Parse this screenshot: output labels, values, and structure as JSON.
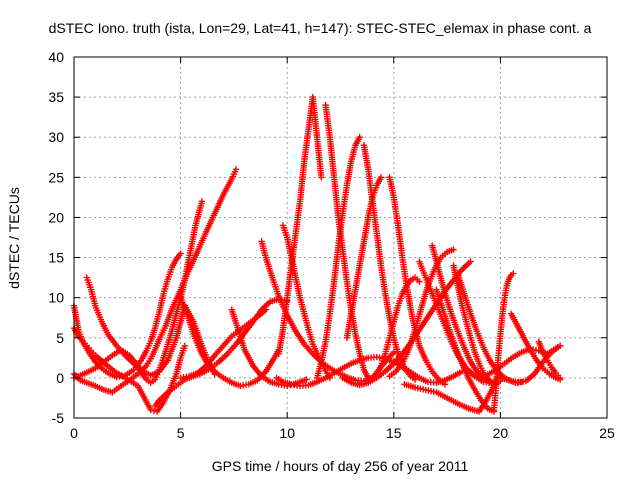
{
  "chart_data": {
    "type": "scatter",
    "title": "dSTEC Iono. truth (ista, Lon=29, Lat=41, h=147): STEC-STEC_elemax in phase cont. a",
    "xlabel": "GPS time / hours of day 256 of year 2011",
    "ylabel": "dSTEC  / TECUs",
    "xlim": [
      0,
      25
    ],
    "ylim": [
      -5,
      40
    ],
    "xticks": [
      "0",
      "5",
      "10",
      "15",
      "20",
      "25"
    ],
    "yticks": [
      "-5",
      "0",
      "5",
      "10",
      "15",
      "20",
      "25",
      "30",
      "35",
      "40"
    ],
    "grid": true,
    "marker": "+",
    "series_color": "#ff0000",
    "series": [
      {
        "x": [
          0.0,
          0.2,
          0.4,
          0.7,
          1.0,
          1.3,
          1.6,
          2.0,
          2.4,
          2.8,
          3.0,
          3.2,
          3.4,
          3.6,
          3.8,
          4.0,
          4.2,
          4.4,
          4.6,
          4.8,
          5.0
        ],
        "y": [
          9.0,
          6.0,
          4.5,
          3.2,
          2.0,
          1.2,
          0.6,
          0.1,
          0.3,
          1.0,
          1.6,
          2.4,
          3.4,
          4.6,
          6.2,
          8.2,
          10.5,
          12.3,
          13.8,
          14.8,
          15.5
        ]
      },
      {
        "x": [
          0.0,
          0.3,
          0.6,
          1.0,
          1.4,
          1.8,
          2.2,
          2.6,
          3.0,
          3.4,
          3.6,
          3.8,
          4.0,
          4.3,
          4.6,
          5.0,
          5.4,
          5.8,
          6.2,
          6.6,
          7.0,
          7.4,
          7.6
        ],
        "y": [
          0.5,
          -0.3,
          -0.6,
          -1.0,
          -1.5,
          -1.8,
          -1.0,
          -0.3,
          0.5,
          1.5,
          2.4,
          3.5,
          4.8,
          6.5,
          8.6,
          11.0,
          13.5,
          15.8,
          18.2,
          20.5,
          22.8,
          24.8,
          26.0
        ]
      },
      {
        "x": [
          0.0,
          0.3,
          0.7,
          1.0,
          1.4,
          1.8,
          2.2,
          2.6,
          3.0,
          3.2,
          3.4,
          3.6,
          3.8,
          4.0,
          4.2,
          4.5,
          4.8,
          5.1,
          5.4,
          5.7,
          6.0
        ],
        "y": [
          0.0,
          0.3,
          0.8,
          1.2,
          2.0,
          2.8,
          3.5,
          2.8,
          1.5,
          0.5,
          -0.2,
          -0.6,
          -0.2,
          1.0,
          2.5,
          5.0,
          8.0,
          11.0,
          15.0,
          19.0,
          22.0
        ]
      },
      {
        "x": [
          0.0,
          0.2,
          0.4,
          0.6,
          0.8,
          1.0,
          1.4,
          1.8,
          2.2,
          2.6,
          3.0,
          3.3,
          3.6,
          3.9,
          4.2,
          4.5,
          4.8,
          5.0,
          5.2
        ],
        "y": [
          6.2,
          5.2,
          4.6,
          4.0,
          3.4,
          2.8,
          1.9,
          1.0,
          0.3,
          -0.3,
          -1.0,
          -2.5,
          -4.0,
          -4.2,
          -3.0,
          -1.5,
          0.5,
          2.5,
          4.0
        ]
      },
      {
        "x": [
          0.6,
          0.8,
          1.0,
          1.3,
          1.6,
          2.0,
          2.4,
          2.8,
          3.2,
          3.6,
          4.0,
          4.4,
          4.8,
          5.2,
          5.6,
          6.0,
          6.3,
          6.6
        ],
        "y": [
          12.5,
          11.0,
          9.0,
          7.0,
          5.4,
          4.0,
          2.8,
          1.8,
          0.9,
          0.3,
          0.8,
          2.2,
          5.0,
          9.0,
          7.0,
          4.0,
          2.0,
          0.5
        ]
      },
      {
        "x": [
          3.8,
          4.0,
          4.4,
          4.8,
          5.2,
          5.6,
          6.0,
          6.4,
          6.8,
          7.2,
          7.6,
          8.0,
          8.4,
          8.8,
          9.2,
          9.6,
          10.0
        ],
        "y": [
          -3.5,
          -2.8,
          -1.8,
          -1.0,
          -0.2,
          0.2,
          0.6,
          1.2,
          2.0,
          3.0,
          4.2,
          5.6,
          7.0,
          8.5,
          9.5,
          9.8,
          9.6
        ]
      },
      {
        "x": [
          5.0,
          5.3,
          5.6,
          5.9,
          6.2,
          6.6,
          7.0,
          7.4,
          7.8,
          8.2,
          8.6,
          9.0,
          9.4,
          9.6
        ],
        "y": [
          10.0,
          8.0,
          5.5,
          3.5,
          2.0,
          0.8,
          0.0,
          -0.6,
          -1.0,
          -0.8,
          -0.3,
          0.8,
          2.5,
          3.5
        ]
      },
      {
        "x": [
          5.0,
          5.4,
          5.8,
          6.2,
          6.6,
          7.0,
          7.4,
          7.8,
          8.2,
          8.6,
          9.0
        ],
        "y": [
          0.0,
          0.2,
          0.6,
          1.5,
          2.8,
          4.0,
          5.2,
          6.0,
          6.8,
          7.6,
          8.5
        ]
      },
      {
        "x": [
          7.4,
          7.7,
          8.0,
          8.4,
          8.8,
          9.2,
          9.6,
          10.0,
          10.3,
          10.6,
          10.9
        ],
        "y": [
          8.5,
          6.0,
          3.5,
          1.5,
          0.2,
          -0.5,
          -0.8,
          -1.0,
          -0.8,
          -0.5,
          -0.2
        ]
      },
      {
        "x": [
          8.8,
          9.0,
          9.3,
          9.6,
          10.0,
          10.4,
          10.8,
          11.2,
          11.6,
          12.0,
          12.4,
          12.8,
          13.2,
          13.6,
          14.0,
          14.3,
          14.6,
          15.0
        ],
        "y": [
          17.0,
          15.0,
          12.5,
          10.2,
          7.8,
          5.8,
          4.2,
          3.0,
          2.0,
          1.2,
          0.6,
          0.1,
          -0.3,
          -0.4,
          0.0,
          1.0,
          2.0,
          3.2
        ]
      },
      {
        "x": [
          9.6,
          9.8,
          10.0,
          10.2,
          10.4,
          10.6,
          10.8,
          11.0,
          11.2,
          11.4,
          11.6
        ],
        "y": [
          3.0,
          6.0,
          10.0,
          14.0,
          18.0,
          22.0,
          27.0,
          31.0,
          35.0,
          30.0,
          25.0
        ]
      },
      {
        "x": [
          9.8,
          10.0,
          10.2,
          10.4,
          10.6,
          10.8,
          11.0,
          11.2,
          11.5,
          11.8,
          12.0
        ],
        "y": [
          19.0,
          17.5,
          15.0,
          12.5,
          10.0,
          8.0,
          6.0,
          4.2,
          2.5,
          0.9,
          0.0
        ]
      },
      {
        "x": [
          9.5,
          9.8,
          10.2,
          10.6,
          11.0,
          11.4,
          11.8,
          12.2,
          12.6,
          13.0,
          13.4,
          13.8,
          14.2,
          14.6,
          15.0,
          15.4,
          15.8,
          16.2,
          16.6,
          17.0,
          17.4,
          17.8,
          18.2
        ],
        "y": [
          0.0,
          -0.5,
          -0.8,
          -1.0,
          -0.9,
          -0.5,
          0.0,
          0.6,
          1.2,
          1.8,
          2.2,
          2.5,
          2.6,
          2.4,
          2.0,
          1.4,
          0.7,
          0.0,
          -0.5,
          -0.6,
          -0.3,
          0.2,
          0.8
        ]
      },
      {
        "x": [
          11.8,
          12.0,
          12.2,
          12.4,
          12.6,
          12.8,
          13.0,
          13.2,
          13.4,
          13.6,
          13.8
        ],
        "y": [
          34.0,
          30.0,
          25.0,
          20.0,
          16.0,
          12.0,
          8.5,
          5.5,
          3.0,
          1.0,
          0.0
        ]
      },
      {
        "x": [
          11.4,
          11.6,
          11.8,
          12.0,
          12.2,
          12.4,
          12.6,
          12.8,
          13.0,
          13.2,
          13.4
        ],
        "y": [
          0.0,
          2.0,
          4.5,
          8.0,
          12.0,
          16.5,
          20.5,
          24.0,
          27.0,
          29.0,
          30.0
        ]
      },
      {
        "x": [
          12.6,
          13.0,
          13.4,
          13.8,
          14.2,
          14.6,
          15.0,
          15.4,
          15.8,
          16.2,
          16.6,
          17.0,
          17.4,
          17.8,
          18.2,
          18.6
        ],
        "y": [
          0.0,
          -0.6,
          -0.9,
          -0.6,
          0.0,
          0.8,
          1.8,
          3.0,
          4.4,
          6.0,
          7.6,
          9.2,
          10.8,
          12.2,
          13.5,
          14.5
        ]
      },
      {
        "x": [
          13.6,
          13.8,
          14.0,
          14.2,
          14.4,
          14.6,
          14.8,
          15.0,
          15.2,
          15.5,
          15.8,
          16.0
        ],
        "y": [
          29.0,
          26.0,
          22.0,
          18.0,
          14.0,
          10.5,
          7.5,
          5.0,
          3.0,
          1.2,
          0.2,
          -0.2
        ]
      },
      {
        "x": [
          12.8,
          13.0,
          13.2,
          13.4,
          13.6,
          13.8,
          14.0,
          14.2,
          14.4
        ],
        "y": [
          5.0,
          8.0,
          11.0,
          14.0,
          17.0,
          20.0,
          22.5,
          24.0,
          25.0
        ]
      },
      {
        "x": [
          14.0,
          14.2,
          14.4,
          14.6,
          14.8,
          15.0,
          15.2,
          15.4,
          15.6,
          15.8,
          16.0,
          16.2
        ],
        "y": [
          0.0,
          0.5,
          1.5,
          3.0,
          5.0,
          7.0,
          9.0,
          10.5,
          11.5,
          12.2,
          12.5,
          12.0
        ]
      },
      {
        "x": [
          14.8,
          15.0,
          15.2,
          15.4,
          15.6,
          15.8,
          16.0,
          16.2,
          16.5,
          16.8,
          17.1,
          17.4
        ],
        "y": [
          25.0,
          22.5,
          19.0,
          15.0,
          11.5,
          8.5,
          6.0,
          4.0,
          2.2,
          0.8,
          -0.2,
          -0.8
        ]
      },
      {
        "x": [
          14.8,
          15.1,
          15.4,
          15.7,
          16.0,
          16.3,
          16.6,
          16.9,
          17.2,
          17.5,
          17.8
        ],
        "y": [
          0.2,
          0.8,
          1.8,
          3.5,
          6.0,
          8.8,
          11.5,
          13.5,
          15.0,
          15.7,
          16.0
        ]
      },
      {
        "x": [
          16.2,
          16.5,
          16.8,
          17.1,
          17.4,
          17.7,
          18.0,
          18.4,
          18.8,
          19.2,
          19.6,
          20.0
        ],
        "y": [
          14.5,
          12.5,
          10.5,
          8.5,
          6.5,
          4.5,
          2.8,
          1.2,
          0.2,
          -0.5,
          -0.7,
          -0.4
        ]
      },
      {
        "x": [
          16.8,
          17.1,
          17.4,
          17.7,
          18.0,
          18.3,
          18.6,
          18.9,
          19.2,
          19.5
        ],
        "y": [
          16.5,
          13.5,
          10.5,
          8.0,
          5.8,
          3.8,
          2.0,
          0.8,
          0.0,
          -0.5
        ]
      },
      {
        "x": [
          17.8,
          18.0,
          18.2,
          18.4,
          18.6,
          18.8,
          19.0,
          19.2,
          19.5,
          19.8
        ],
        "y": [
          14.0,
          11.5,
          9.0,
          7.0,
          5.0,
          3.2,
          1.8,
          0.6,
          -0.4,
          -0.8
        ]
      },
      {
        "x": [
          17.0,
          17.3,
          17.6,
          17.9,
          18.2,
          18.5,
          18.8,
          19.1,
          19.4,
          19.7
        ],
        "y": [
          11.0,
          8.5,
          6.0,
          3.8,
          1.8,
          0.0,
          -1.5,
          -2.8,
          -3.8,
          -4.2
        ]
      },
      {
        "x": [
          15.5,
          16.0,
          16.5,
          17.0,
          17.5,
          18.0,
          18.5,
          19.0,
          19.3,
          19.6,
          19.9
        ],
        "y": [
          -0.8,
          -1.2,
          -1.5,
          -1.8,
          -2.5,
          -3.2,
          -3.8,
          -4.2,
          -3.0,
          -1.5,
          0.5
        ]
      },
      {
        "x": [
          18.0,
          18.3,
          18.6,
          18.9,
          19.2,
          19.5,
          19.8,
          20.1,
          20.4,
          20.7,
          21.0
        ],
        "y": [
          13.0,
          10.5,
          8.0,
          5.8,
          3.8,
          2.2,
          1.0,
          0.2,
          -0.3,
          -0.6,
          -0.5
        ]
      },
      {
        "x": [
          19.7,
          19.8,
          19.9,
          20.0,
          20.1,
          20.2,
          20.3,
          20.4,
          20.5,
          20.6
        ],
        "y": [
          -4.0,
          -1.0,
          2.5,
          5.5,
          8.0,
          10.0,
          11.5,
          12.3,
          12.8,
          13.0
        ]
      },
      {
        "x": [
          19.0,
          19.4,
          19.8,
          20.2,
          20.6,
          21.0,
          21.4,
          21.8,
          22.2,
          22.5,
          22.8
        ],
        "y": [
          0.0,
          0.4,
          1.0,
          1.8,
          2.6,
          3.2,
          3.6,
          3.4,
          3.0,
          3.5,
          4.0
        ]
      },
      {
        "x": [
          20.5,
          20.8,
          21.1,
          21.4,
          21.7,
          22.0,
          22.3,
          22.6,
          22.8
        ],
        "y": [
          8.0,
          6.5,
          5.0,
          3.5,
          2.2,
          1.2,
          0.5,
          0.0,
          -0.2
        ]
      },
      {
        "x": [
          20.0,
          20.4,
          20.8,
          21.2,
          21.6,
          22.0,
          22.4,
          22.8
        ],
        "y": [
          0.0,
          -0.3,
          -0.6,
          -0.4,
          0.5,
          2.0,
          3.2,
          4.0
        ]
      },
      {
        "x": [
          21.8,
          22.0,
          22.2,
          22.4,
          22.6,
          22.8
        ],
        "y": [
          4.5,
          3.2,
          2.2,
          1.3,
          0.6,
          0.0
        ]
      }
    ]
  }
}
